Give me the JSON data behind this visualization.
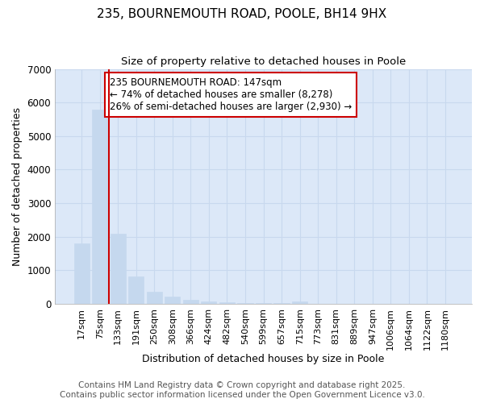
{
  "title1": "235, BOURNEMOUTH ROAD, POOLE, BH14 9HX",
  "title2": "Size of property relative to detached houses in Poole",
  "xlabel": "Distribution of detached houses by size in Poole",
  "ylabel": "Number of detached properties",
  "categories": [
    "17sqm",
    "75sqm",
    "133sqm",
    "191sqm",
    "250sqm",
    "308sqm",
    "366sqm",
    "424sqm",
    "482sqm",
    "540sqm",
    "599sqm",
    "657sqm",
    "715sqm",
    "773sqm",
    "831sqm",
    "889sqm",
    "947sqm",
    "1006sqm",
    "1064sqm",
    "1122sqm",
    "1180sqm"
  ],
  "values": [
    1800,
    5800,
    2080,
    820,
    360,
    220,
    115,
    80,
    60,
    35,
    25,
    20,
    70,
    0,
    0,
    0,
    0,
    0,
    0,
    0,
    0
  ],
  "bar_color": "#c5d8ee",
  "bar_edge_color": "#c5d8ee",
  "vline_x_idx": 1.5,
  "vline_color": "#cc0000",
  "annotation_text": "235 BOURNEMOUTH ROAD: 147sqm\n← 74% of detached houses are smaller (8,278)\n26% of semi-detached houses are larger (2,930) →",
  "annotation_box_color": "#ffffff",
  "annotation_box_edge": "#cc0000",
  "ylim": [
    0,
    7000
  ],
  "yticks": [
    0,
    1000,
    2000,
    3000,
    4000,
    5000,
    6000,
    7000
  ],
  "grid_color": "#c8d8ee",
  "plot_bg_color": "#dce8f8",
  "fig_bg_color": "#ffffff",
  "footer1": "Contains HM Land Registry data © Crown copyright and database right 2025.",
  "footer2": "Contains public sector information licensed under the Open Government Licence v3.0.",
  "title1_fontsize": 11,
  "title2_fontsize": 9.5,
  "annotation_fontsize": 8.5,
  "footer_fontsize": 7.5,
  "axis_label_fontsize": 9,
  "ytick_fontsize": 8.5,
  "xtick_fontsize": 8
}
